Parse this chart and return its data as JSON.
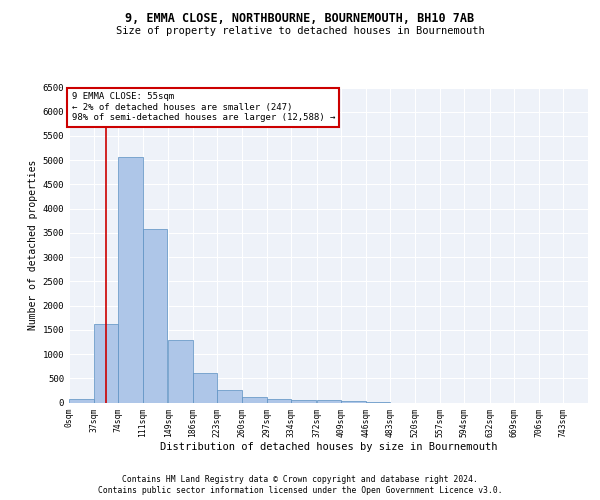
{
  "title1": "9, EMMA CLOSE, NORTHBOURNE, BOURNEMOUTH, BH10 7AB",
  "title2": "Size of property relative to detached houses in Bournemouth",
  "xlabel": "Distribution of detached houses by size in Bournemouth",
  "ylabel": "Number of detached properties",
  "footer1": "Contains HM Land Registry data © Crown copyright and database right 2024.",
  "footer2": "Contains public sector information licensed under the Open Government Licence v3.0.",
  "annotation_title": "9 EMMA CLOSE: 55sqm",
  "annotation_line2": "← 2% of detached houses are smaller (247)",
  "annotation_line3": "98% of semi-detached houses are larger (12,588) →",
  "property_size_sqm": 55,
  "bar_color": "#aec6e8",
  "bar_edge_color": "#5a8fc2",
  "marker_color": "#cc0000",
  "annotation_box_color": "#cc0000",
  "background_color": "#eef2f9",
  "ylim": [
    0,
    6500
  ],
  "bin_labels": [
    "0sqm",
    "37sqm",
    "74sqm",
    "111sqm",
    "149sqm",
    "186sqm",
    "223sqm",
    "260sqm",
    "297sqm",
    "334sqm",
    "372sqm",
    "409sqm",
    "446sqm",
    "483sqm",
    "520sqm",
    "557sqm",
    "594sqm",
    "632sqm",
    "669sqm",
    "706sqm",
    "743sqm"
  ],
  "bin_edges": [
    0,
    37,
    74,
    111,
    149,
    186,
    223,
    260,
    297,
    334,
    372,
    409,
    446,
    483,
    520,
    557,
    594,
    632,
    669,
    706,
    743,
    780
  ],
  "bar_heights": [
    75,
    1630,
    5060,
    3590,
    1280,
    610,
    260,
    120,
    80,
    60,
    50,
    30,
    10,
    0,
    0,
    0,
    0,
    0,
    0,
    0,
    0
  ],
  "yticks": [
    0,
    500,
    1000,
    1500,
    2000,
    2500,
    3000,
    3500,
    4000,
    4500,
    5000,
    5500,
    6000,
    6500
  ]
}
